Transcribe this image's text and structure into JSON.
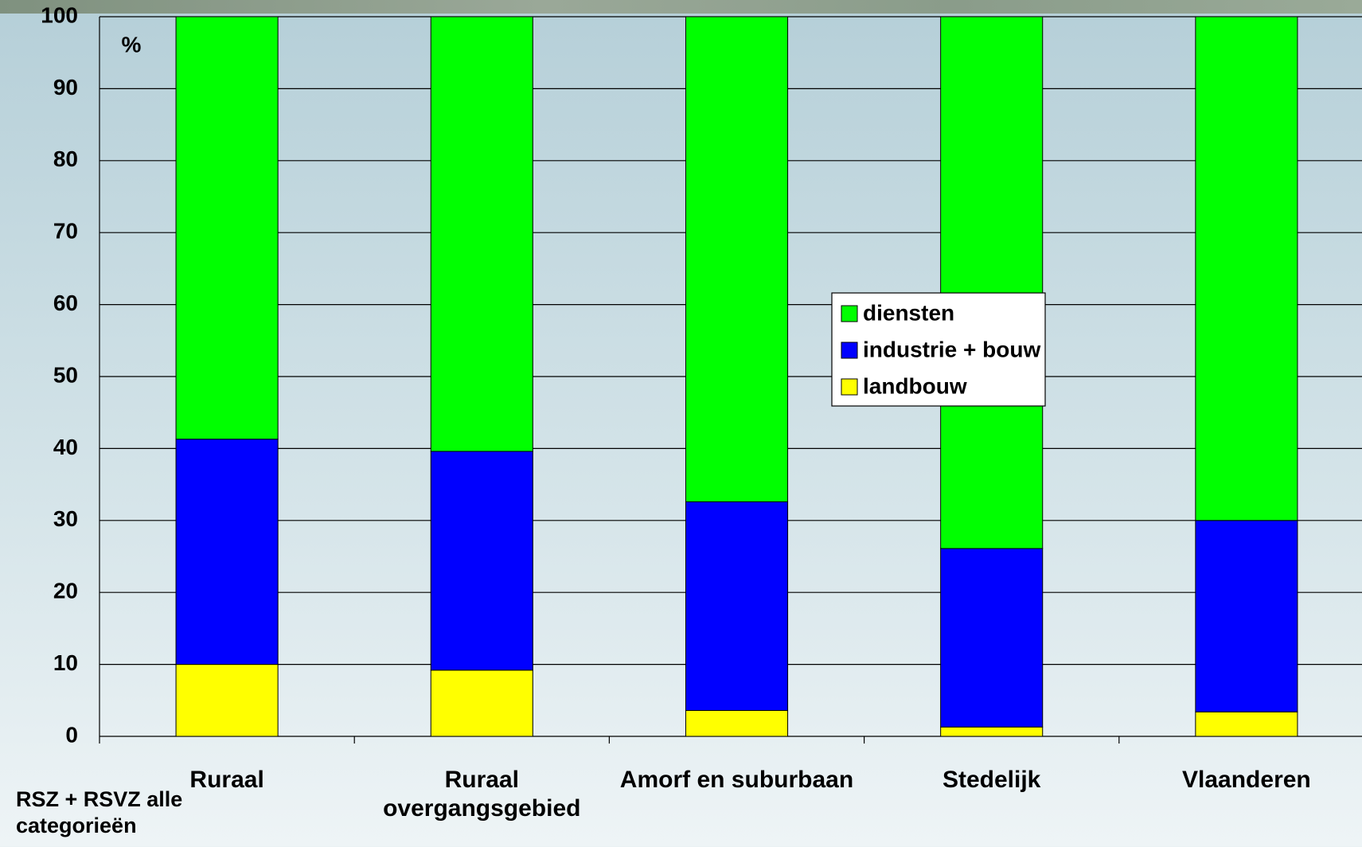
{
  "chart_data": {
    "type": "stacked_bar",
    "unit_label": "%",
    "note": "RSZ + RSVZ alle categorieën",
    "categories": [
      "Ruraal",
      "Ruraal overgangsgebied",
      "Amorf en suburbaan",
      "Stedelijk",
      "Vlaanderen"
    ],
    "series": [
      {
        "name": "landbouw",
        "color": "#ffff00",
        "values": [
          10.0,
          9.2,
          3.6,
          1.3,
          3.4
        ]
      },
      {
        "name": "industrie + bouw",
        "color": "#0000ff",
        "values": [
          31.3,
          30.4,
          29.0,
          24.8,
          26.6
        ]
      },
      {
        "name": "diensten",
        "color": "#00ff00",
        "values": [
          58.7,
          60.4,
          67.4,
          73.9,
          70.0
        ]
      }
    ],
    "ylim": [
      0,
      100
    ],
    "yticks": [
      0,
      10,
      20,
      30,
      40,
      50,
      60,
      70,
      80,
      90,
      100
    ],
    "grid": true,
    "legend": "center"
  }
}
